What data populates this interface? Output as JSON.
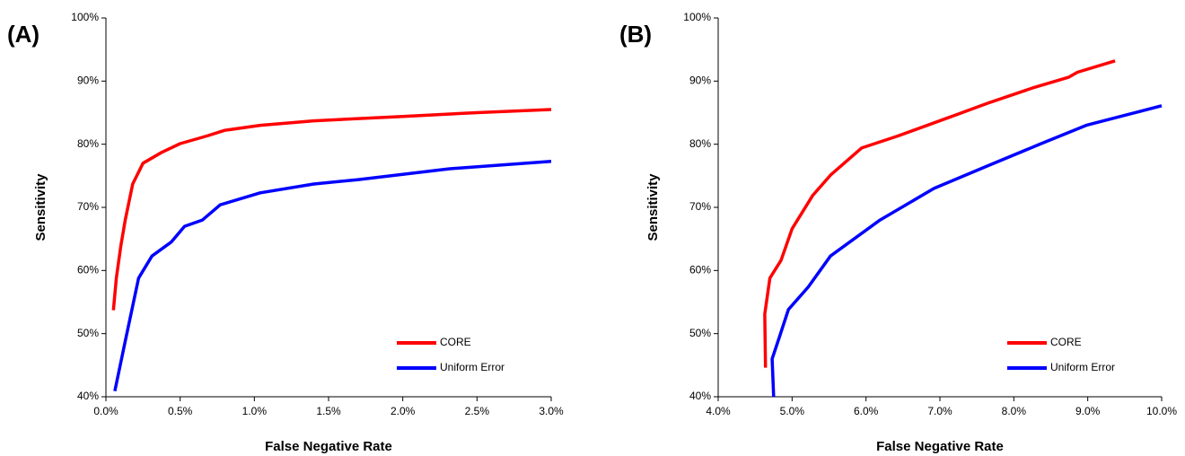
{
  "chart_data": [
    {
      "type": "line",
      "panel_label": "(A)",
      "x_label": "False Negative Rate",
      "y_label": "Sensitivity",
      "legend": "lower right",
      "xlim": [
        0,
        3
      ],
      "ylim": [
        40,
        100
      ],
      "xticks": [
        {
          "value": 0,
          "label": "0.0%"
        },
        {
          "value": 0.5,
          "label": "0.5%"
        },
        {
          "value": 1,
          "label": "1.0%"
        },
        {
          "value": 1.5,
          "label": "1.5%"
        },
        {
          "value": 2,
          "label": "2.0%"
        },
        {
          "value": 2.5,
          "label": "2.5%"
        },
        {
          "value": 3,
          "label": "3.0%"
        }
      ],
      "yticks": [
        {
          "value": 40,
          "label": "40%"
        },
        {
          "value": 50,
          "label": "50%"
        },
        {
          "value": 60,
          "label": "60%"
        },
        {
          "value": 70,
          "label": "70%"
        },
        {
          "value": 80,
          "label": "80%"
        },
        {
          "value": 90,
          "label": "90%"
        },
        {
          "value": 100,
          "label": "100%"
        }
      ],
      "series": [
        {
          "name": "CORE",
          "color": "#ff0000",
          "x": [
            0.05,
            0.07,
            0.1,
            0.13,
            0.18,
            0.25,
            0.375,
            0.5,
            0.68,
            0.8,
            1.04,
            1.4,
            2.0,
            2.5,
            3.0
          ],
          "values": [
            53.7,
            58.8,
            63.8,
            68,
            73.7,
            77,
            78.7,
            80.1,
            81.3,
            82.2,
            83,
            83.7,
            84.4,
            85,
            85.5
          ]
        },
        {
          "name": "Uniform Error",
          "color": "#0000ff",
          "x": [
            0.06,
            0.13,
            0.22,
            0.31,
            0.44,
            0.53,
            0.65,
            0.77,
            1.04,
            1.4,
            1.7,
            2.31,
            3.0
          ],
          "values": [
            40.9,
            48.8,
            58.8,
            62.3,
            64.5,
            67,
            68,
            70.4,
            72.3,
            73.7,
            74.4,
            76.1,
            77.3
          ]
        }
      ]
    },
    {
      "type": "line",
      "panel_label": "(B)",
      "x_label": "False Negative Rate",
      "y_label": "Sensitivity",
      "legend": "lower right",
      "xlim": [
        4,
        10
      ],
      "ylim": [
        40,
        100
      ],
      "xticks": [
        {
          "value": 4,
          "label": "4.0%"
        },
        {
          "value": 5,
          "label": "5.0%"
        },
        {
          "value": 6,
          "label": "6.0%"
        },
        {
          "value": 7,
          "label": "7.0%"
        },
        {
          "value": 8,
          "label": "8.0%"
        },
        {
          "value": 9,
          "label": "9.0%"
        },
        {
          "value": 10,
          "label": "10.0%"
        }
      ],
      "yticks": [
        {
          "value": 40,
          "label": "40%"
        },
        {
          "value": 50,
          "label": "50%"
        },
        {
          "value": 60,
          "label": "60%"
        },
        {
          "value": 70,
          "label": "70%"
        },
        {
          "value": 80,
          "label": "80%"
        },
        {
          "value": 90,
          "label": "90%"
        },
        {
          "value": 100,
          "label": "100%"
        }
      ],
      "series": [
        {
          "name": "CORE",
          "color": "#ff0000",
          "x": [
            4.64,
            4.63,
            4.7,
            4.85,
            5.0,
            5.28,
            5.52,
            5.94,
            6.43,
            7.16,
            7.65,
            8.25,
            8.74,
            8.86,
            9.37
          ],
          "values": [
            44.6,
            53.1,
            58.8,
            61.6,
            66.6,
            71.9,
            75.1,
            79.4,
            81.3,
            84.4,
            86.5,
            88.9,
            90.6,
            91.4,
            93.2
          ]
        },
        {
          "name": "Uniform Error",
          "color": "#0000ff",
          "x": [
            4.75,
            4.73,
            4.83,
            4.95,
            5.22,
            5.52,
            6.19,
            6.92,
            7.65,
            8.37,
            8.98,
            10.0
          ],
          "values": [
            40,
            46,
            49.5,
            53.8,
            57.4,
            62.3,
            68,
            73,
            76.6,
            80.1,
            83,
            86.1
          ]
        }
      ]
    }
  ]
}
